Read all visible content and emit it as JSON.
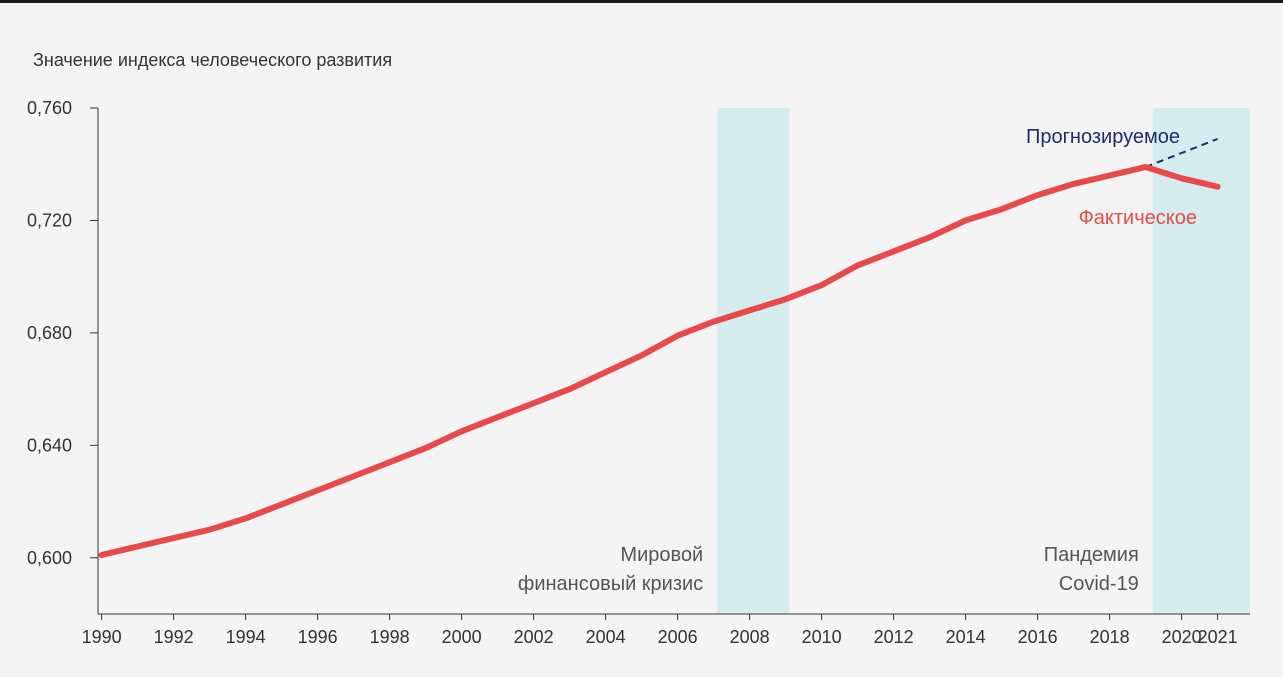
{
  "chart_data": {
    "type": "line",
    "ylabel": "Значение индекса человеческого развития",
    "ylim": [
      0.58,
      0.76
    ],
    "y_ticks": [
      0.6,
      0.64,
      0.68,
      0.72,
      0.76
    ],
    "y_tick_labels": [
      "0,600",
      "0,640",
      "0,680",
      "0,720",
      "0,760"
    ],
    "xlim": [
      1989.9,
      2021.9
    ],
    "x_ticks": [
      1990,
      1992,
      1994,
      1996,
      1998,
      2000,
      2002,
      2004,
      2006,
      2008,
      2010,
      2012,
      2014,
      2016,
      2018,
      2020,
      2021
    ],
    "x_tick_labels": [
      "1990",
      "1992",
      "1994",
      "1996",
      "1998",
      "2000",
      "2002",
      "2004",
      "2006",
      "2008",
      "2010",
      "2012",
      "2014",
      "2016",
      "2018",
      "2020",
      "2021"
    ],
    "series": [
      {
        "name": "Фактическое",
        "color": "#e84a4a",
        "style": "solid",
        "x": [
          1990,
          1991,
          1992,
          1993,
          1994,
          1995,
          1996,
          1997,
          1998,
          1999,
          2000,
          2001,
          2002,
          2003,
          2004,
          2005,
          2006,
          2007,
          2008,
          2009,
          2010,
          2011,
          2012,
          2013,
          2014,
          2015,
          2016,
          2017,
          2018,
          2019,
          2020,
          2021
        ],
        "y": [
          0.601,
          0.604,
          0.607,
          0.61,
          0.614,
          0.619,
          0.624,
          0.629,
          0.634,
          0.639,
          0.645,
          0.65,
          0.655,
          0.66,
          0.666,
          0.672,
          0.679,
          0.684,
          0.688,
          0.692,
          0.697,
          0.704,
          0.709,
          0.714,
          0.72,
          0.724,
          0.729,
          0.733,
          0.736,
          0.739,
          0.735,
          0.732
        ]
      },
      {
        "name": "Прогнозируемое",
        "color": "#1f2b6b",
        "style": "dashed",
        "x": [
          2019,
          2020,
          2021
        ],
        "y": [
          0.739,
          0.744,
          0.749
        ]
      }
    ],
    "shaded_periods": [
      {
        "label_lines": [
          "Мировой",
          "финансовый кризис"
        ],
        "x_start": 2007.1,
        "x_end": 2009.1,
        "color": "#d5edf0"
      },
      {
        "label_lines": [
          "Пандемия",
          "Covid-19"
        ],
        "x_start": 2019.2,
        "x_end": 2021.9,
        "color": "#d5edf0"
      }
    ],
    "grid": false
  }
}
